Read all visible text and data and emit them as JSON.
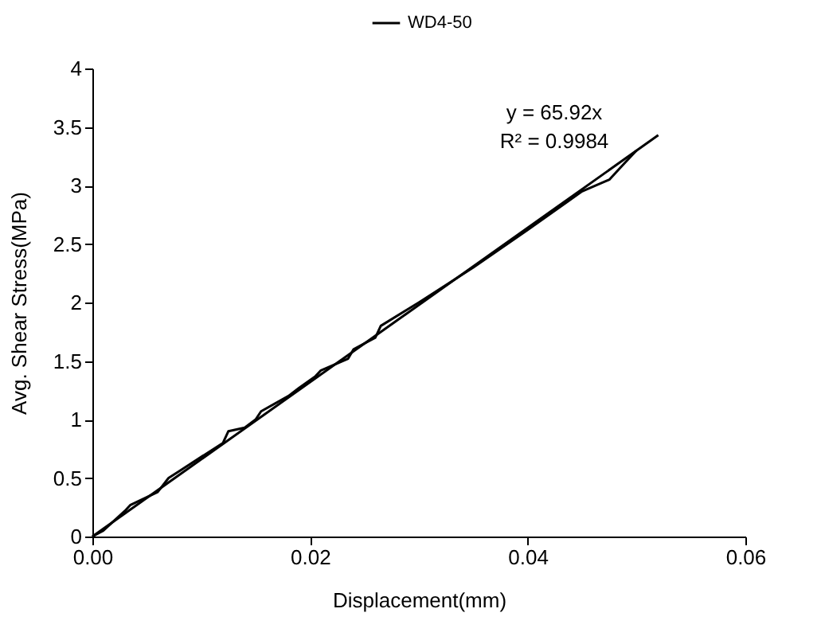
{
  "chart_data": {
    "type": "line",
    "xlabel": "Displacement(mm)",
    "ylabel": "Avg. Shear Stress(MPa)",
    "xlim": [
      0,
      0.06
    ],
    "xticks": [
      {
        "value": 0,
        "label": "0.00"
      },
      {
        "value": 0.02,
        "label": "0.02"
      },
      {
        "value": 0.04,
        "label": "0.04"
      },
      {
        "value": 0.06,
        "label": "0.06"
      }
    ],
    "ylim": [
      0,
      4
    ],
    "yticks": [
      0,
      0.5,
      1,
      1.5,
      2,
      2.5,
      3,
      3.5,
      4
    ],
    "grid": false,
    "legend": "top",
    "marker": "none",
    "line_style": "solid",
    "series": [
      {
        "name": "WD4-50",
        "color": "#000000",
        "x": [
          0,
          0.001,
          0.003,
          0.0035,
          0.006,
          0.007,
          0.008,
          0.012,
          0.0125,
          0.014,
          0.015,
          0.0155,
          0.018,
          0.019,
          0.0205,
          0.021,
          0.0235,
          0.024,
          0.026,
          0.0265,
          0.03,
          0.035,
          0.04,
          0.045,
          0.0475,
          0.048,
          0.049,
          0.05
        ],
        "values": [
          0,
          0.05,
          0.22,
          0.27,
          0.38,
          0.5,
          0.56,
          0.8,
          0.9,
          0.93,
          1,
          1.07,
          1.2,
          1.27,
          1.37,
          1.42,
          1.52,
          1.6,
          1.7,
          1.8,
          2,
          2.3,
          2.62,
          2.95,
          3.05,
          3.1,
          3.2,
          3.3
        ]
      },
      {
        "type": "line",
        "color": "#000000",
        "x": [
          0,
          0.052
        ],
        "values": [
          0,
          3.43
        ]
      }
    ],
    "annotations": [
      "y = 65.92x",
      "R² = 0.9984"
    ]
  }
}
